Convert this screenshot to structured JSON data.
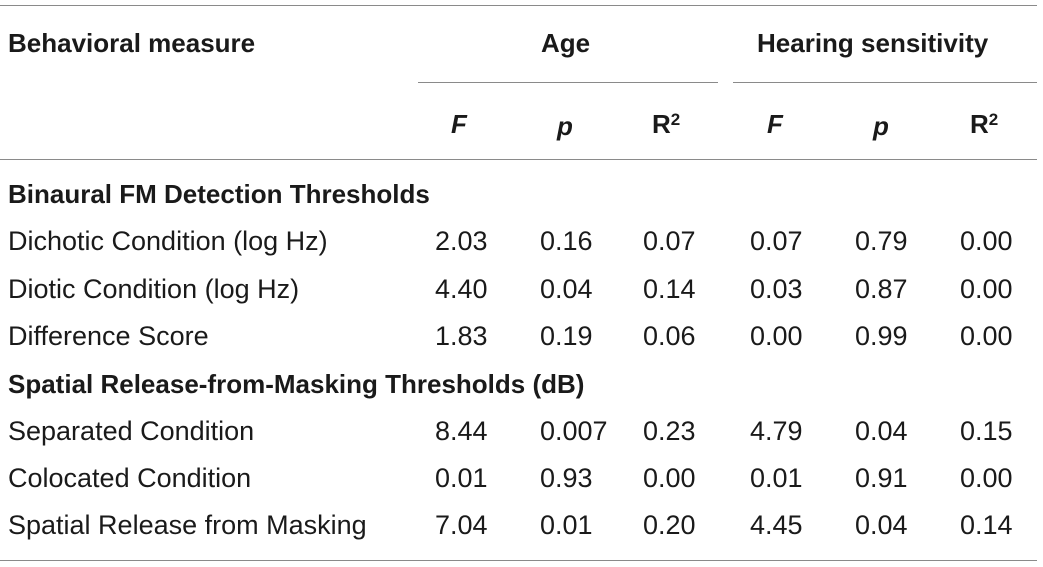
{
  "table": {
    "col_header": "Behavioral measure",
    "groups": [
      "Age",
      "Hearing sensitivity"
    ],
    "stats": {
      "F": "F",
      "p": "p",
      "R": "R",
      "sup": "2"
    },
    "sections": [
      {
        "title": "Binaural FM Detection Thresholds",
        "rows": [
          {
            "label": "Dichotic Condition (log Hz)",
            "values": [
              "2.03",
              "0.16",
              "0.07",
              "0.07",
              "0.79",
              "0.00"
            ]
          },
          {
            "label": "Diotic Condition (log Hz)",
            "values": [
              "4.40",
              "0.04",
              "0.14",
              "0.03",
              "0.87",
              "0.00"
            ]
          },
          {
            "label": "Difference Score",
            "values": [
              "1.83",
              "0.19",
              "0.06",
              "0.00",
              "0.99",
              "0.00"
            ]
          }
        ]
      },
      {
        "title": "Spatial Release-from-Masking Thresholds (dB)",
        "rows": [
          {
            "label": "Separated Condition",
            "values": [
              "8.44",
              "0.007",
              "0.23",
              "4.79",
              "0.04",
              "0.15"
            ]
          },
          {
            "label": "Colocated Condition",
            "values": [
              "0.01",
              "0.93",
              "0.00",
              "0.01",
              "0.91",
              "0.00"
            ]
          },
          {
            "label": "Spatial Release from Masking",
            "values": [
              "7.04",
              "0.01",
              "0.20",
              "4.45",
              "0.04",
              "0.14"
            ]
          }
        ]
      }
    ]
  }
}
